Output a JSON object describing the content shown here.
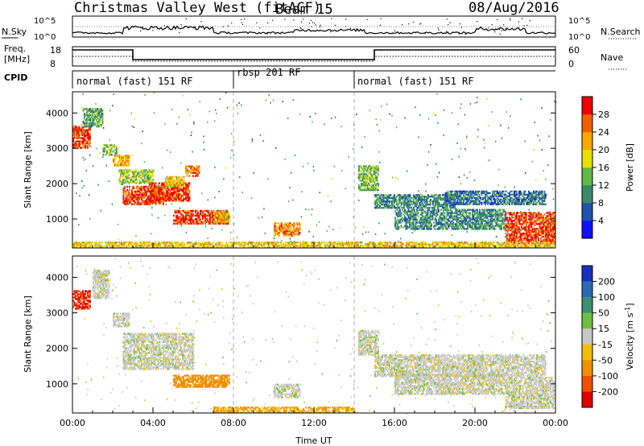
{
  "header": {
    "title": "Christmas Valley West (fitACF)",
    "beam": "Beam 15",
    "date": "08/Aug/2016"
  },
  "top_panels": {
    "nsky_label": "N.Sky",
    "nsearch_label": "N.Search",
    "freq_label_1": "Freq.",
    "freq_label_2": "[MHz]",
    "nave_label": "Nave",
    "cpid_label": "CPID",
    "noise_ticks_left": [
      "10^5",
      "10^0"
    ],
    "noise_ticks_right": [
      "10^5",
      "10^0"
    ],
    "freq_ticks": [
      "18",
      "8"
    ],
    "nave_ticks": [
      "60",
      "0"
    ]
  },
  "modes": [
    {
      "label": "normal (fast) 151 RF",
      "start_h": 0,
      "end_h": 8
    },
    {
      "label": "rbsp 201 RF",
      "start_h": 8,
      "end_h": 14
    },
    {
      "label": "normal (fast) 151 RF",
      "start_h": 14,
      "end_h": 24
    }
  ],
  "axes": {
    "xlabel": "Time UT",
    "xticks": [
      "00:00",
      "04:00",
      "08:00",
      "12:00",
      "16:00",
      "20:00",
      "00:00"
    ],
    "ylabel": "Slant Range [km]",
    "yticks": [
      "1000",
      "2000",
      "3000",
      "4000"
    ]
  },
  "power_scale": {
    "label": "Power [dB]",
    "ticks": [
      "4",
      "8",
      "12",
      "16",
      "20",
      "24",
      "28"
    ],
    "colors": [
      "#1010ff",
      "#2050b0",
      "#3a8a6a",
      "#60b848",
      "#e8e000",
      "#f8a800",
      "#f06000",
      "#f00000"
    ]
  },
  "velocity_scale": {
    "label": "Velocity [m s",
    "label_sup": "-1",
    "label_end": "]",
    "ticks": [
      "200",
      "100",
      "50",
      "15",
      "-15",
      "-50",
      "-100",
      "-200"
    ],
    "colors": [
      "#1a2fc0",
      "#2a6ab0",
      "#3a9070",
      "#6cc040",
      "#c8c8c8",
      "#f0c000",
      "#f09000",
      "#f05000",
      "#e00000"
    ]
  },
  "chart_data": [
    {
      "type": "heatmap",
      "title": "Power",
      "xlabel": "Time UT",
      "ylabel": "Slant Range [km]",
      "xlim": [
        0,
        24
      ],
      "ylim": [
        180,
        4600
      ],
      "colorbar": "Power [dB]",
      "clim": [
        0,
        32
      ],
      "regions": [
        {
          "t0": 0.0,
          "t1": 0.9,
          "r0": 3000,
          "r1": 3600,
          "level": 28
        },
        {
          "t0": 0.5,
          "t1": 1.5,
          "r0": 3600,
          "r1": 4100,
          "level": 12
        },
        {
          "t0": 1.5,
          "t1": 2.2,
          "r0": 2800,
          "r1": 3100,
          "level": 14
        },
        {
          "t0": 2.0,
          "t1": 2.8,
          "r0": 2500,
          "r1": 2800,
          "level": 22
        },
        {
          "t0": 2.3,
          "t1": 4.0,
          "r0": 2000,
          "r1": 2400,
          "level": 16
        },
        {
          "t0": 2.5,
          "t1": 4.5,
          "r0": 1400,
          "r1": 1900,
          "level": 28
        },
        {
          "t0": 3.8,
          "t1": 5.8,
          "r0": 1500,
          "r1": 2000,
          "level": 28
        },
        {
          "t0": 4.6,
          "t1": 5.5,
          "r0": 1900,
          "r1": 2200,
          "level": 20
        },
        {
          "t0": 5.6,
          "t1": 6.3,
          "r0": 2200,
          "r1": 2500,
          "level": 26
        },
        {
          "t0": 5.0,
          "t1": 7.8,
          "r0": 850,
          "r1": 1250,
          "level": 28
        },
        {
          "t0": 7.0,
          "t1": 7.8,
          "r0": 900,
          "r1": 1200,
          "level": 20
        },
        {
          "t0": 10.0,
          "t1": 11.3,
          "r0": 500,
          "r1": 900,
          "level": 24
        },
        {
          "t0": 14.2,
          "t1": 15.2,
          "r0": 1800,
          "r1": 2500,
          "level": 14
        },
        {
          "t0": 15.0,
          "t1": 19.0,
          "r0": 1300,
          "r1": 1700,
          "level": 10
        },
        {
          "t0": 16.0,
          "t1": 21.5,
          "r0": 700,
          "r1": 1250,
          "level": 10
        },
        {
          "t0": 18.5,
          "t1": 23.5,
          "r0": 1400,
          "r1": 1800,
          "level": 8
        },
        {
          "t0": 21.5,
          "t1": 23.9,
          "r0": 300,
          "r1": 1200,
          "level": 28
        },
        {
          "t0": 0.0,
          "t1": 23.9,
          "r0": 180,
          "r1": 350,
          "level": 20
        }
      ]
    },
    {
      "type": "heatmap",
      "title": "Velocity",
      "xlabel": "Time UT",
      "ylabel": "Slant Range [km]",
      "xlim": [
        0,
        24
      ],
      "ylim": [
        180,
        4600
      ],
      "colorbar": "Velocity [m s-1]",
      "clim": [
        -250,
        250
      ],
      "regions": [
        {
          "t0": 0.0,
          "t1": 0.9,
          "r0": 3100,
          "r1": 3600,
          "value": -200
        },
        {
          "t0": 1.0,
          "t1": 1.8,
          "r0": 3400,
          "r1": 4200,
          "value": 0
        },
        {
          "t0": 2.0,
          "t1": 2.8,
          "r0": 2600,
          "r1": 3000,
          "value": 0
        },
        {
          "t0": 2.5,
          "t1": 6.0,
          "r0": 1400,
          "r1": 2400,
          "value": 0
        },
        {
          "t0": 5.0,
          "t1": 7.8,
          "r0": 900,
          "r1": 1250,
          "value": -80
        },
        {
          "t0": 10.0,
          "t1": 11.3,
          "r0": 600,
          "r1": 1000,
          "value": 0
        },
        {
          "t0": 14.2,
          "t1": 15.2,
          "r0": 1800,
          "r1": 2500,
          "value": 0
        },
        {
          "t0": 15.0,
          "t1": 23.5,
          "r0": 1200,
          "r1": 1800,
          "value": 0
        },
        {
          "t0": 16.0,
          "t1": 21.5,
          "r0": 700,
          "r1": 1250,
          "value": 0
        },
        {
          "t0": 21.5,
          "t1": 23.9,
          "r0": 300,
          "r1": 1200,
          "value": 0
        },
        {
          "t0": 7.0,
          "t1": 14.0,
          "r0": 180,
          "r1": 330,
          "value": -50
        }
      ]
    }
  ]
}
